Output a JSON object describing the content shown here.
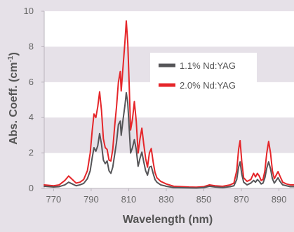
{
  "colors": {
    "page_bg": "#e6e1e8",
    "band_dark": "#e6e1e8",
    "band_light": "#ffffff",
    "axis": "#b9b4bc",
    "tick_text": "#676767",
    "title_text": "#555555",
    "series_1": "#555558",
    "series_2": "#e5262a"
  },
  "chart_data": {
    "type": "line",
    "xlabel": "Wavelength (nm)",
    "ylabel_main": "Abs. Coeff. (cm",
    "ylabel_sup": "-1",
    "ylabel_close": ")",
    "xlim": [
      765,
      898
    ],
    "ylim": [
      0,
      10
    ],
    "xticks": [
      770,
      790,
      810,
      830,
      850,
      870,
      890
    ],
    "yticks": [
      0,
      2,
      4,
      6,
      8,
      10
    ],
    "grid": "alternating horizontal bands",
    "legend_position": "upper-right",
    "series": [
      {
        "name": "1.1% Nd:YAG",
        "color": "#555558",
        "points": [
          [
            765,
            0.12
          ],
          [
            770,
            0.08
          ],
          [
            773,
            0.1
          ],
          [
            776,
            0.2
          ],
          [
            778,
            0.35
          ],
          [
            780,
            0.25
          ],
          [
            782,
            0.15
          ],
          [
            784,
            0.2
          ],
          [
            786,
            0.28
          ],
          [
            788,
            0.55
          ],
          [
            789.5,
            1.0
          ],
          [
            790.5,
            1.7
          ],
          [
            791.5,
            2.3
          ],
          [
            792.5,
            2.1
          ],
          [
            793.5,
            2.4
          ],
          [
            794.5,
            3.1
          ],
          [
            795.5,
            2.5
          ],
          [
            796.5,
            1.6
          ],
          [
            797.5,
            1.4
          ],
          [
            798.5,
            1.55
          ],
          [
            799.5,
            1.0
          ],
          [
            800.5,
            0.85
          ],
          [
            801.5,
            1.2
          ],
          [
            802.5,
            1.9
          ],
          [
            803.5,
            2.6
          ],
          [
            804.5,
            3.6
          ],
          [
            805.5,
            3.8
          ],
          [
            806,
            3.0
          ],
          [
            807,
            3.9
          ],
          [
            808,
            4.7
          ],
          [
            808.7,
            5.4
          ],
          [
            809.5,
            4.8
          ],
          [
            810.2,
            3.5
          ],
          [
            811,
            2.0
          ],
          [
            812,
            2.3
          ],
          [
            813,
            2.75
          ],
          [
            814,
            2.2
          ],
          [
            815,
            1.25
          ],
          [
            816,
            1.7
          ],
          [
            817,
            2.05
          ],
          [
            818,
            1.5
          ],
          [
            819,
            1.0
          ],
          [
            820,
            0.75
          ],
          [
            821,
            1.2
          ],
          [
            822,
            1.25
          ],
          [
            823,
            0.85
          ],
          [
            824,
            0.5
          ],
          [
            825,
            0.35
          ],
          [
            827,
            0.2
          ],
          [
            829,
            0.15
          ],
          [
            830,
            0.12
          ],
          [
            834,
            0.05
          ],
          [
            838,
            0.04
          ],
          [
            842,
            0.03
          ],
          [
            846,
            0.02
          ],
          [
            850,
            0.05
          ],
          [
            853,
            0.12
          ],
          [
            856,
            0.08
          ],
          [
            860,
            0.05
          ],
          [
            864,
            0.1
          ],
          [
            866,
            0.15
          ],
          [
            867.5,
            0.5
          ],
          [
            868.5,
            1.2
          ],
          [
            869.3,
            1.5
          ],
          [
            870.2,
            0.8
          ],
          [
            871.2,
            0.35
          ],
          [
            873,
            0.2
          ],
          [
            875,
            0.3
          ],
          [
            876.5,
            0.45
          ],
          [
            877.5,
            0.35
          ],
          [
            878.5,
            0.5
          ],
          [
            879.5,
            0.4
          ],
          [
            880.5,
            0.25
          ],
          [
            881.5,
            0.3
          ],
          [
            882.5,
            0.6
          ],
          [
            883.5,
            1.15
          ],
          [
            884.5,
            1.5
          ],
          [
            885.5,
            1.1
          ],
          [
            886.5,
            0.55
          ],
          [
            887.5,
            0.3
          ],
          [
            888.5,
            0.45
          ],
          [
            889.5,
            0.6
          ],
          [
            890.5,
            0.4
          ],
          [
            892,
            0.2
          ],
          [
            894,
            0.15
          ],
          [
            896,
            0.1
          ],
          [
            898,
            0.1
          ]
        ]
      },
      {
        "name": "2.0% Nd:YAG",
        "color": "#e5262a",
        "points": [
          [
            765,
            0.2
          ],
          [
            770,
            0.15
          ],
          [
            773,
            0.2
          ],
          [
            776,
            0.45
          ],
          [
            778,
            0.7
          ],
          [
            780,
            0.5
          ],
          [
            782,
            0.3
          ],
          [
            784,
            0.35
          ],
          [
            786,
            0.5
          ],
          [
            788,
            1.0
          ],
          [
            789.5,
            2.0
          ],
          [
            790.5,
            3.2
          ],
          [
            791.5,
            4.2
          ],
          [
            792.5,
            4.0
          ],
          [
            793.5,
            4.6
          ],
          [
            794.5,
            5.45
          ],
          [
            795.5,
            4.4
          ],
          [
            796.5,
            2.8
          ],
          [
            797.5,
            2.3
          ],
          [
            798.5,
            2.2
          ],
          [
            799.5,
            1.6
          ],
          [
            800.5,
            1.55
          ],
          [
            801.5,
            2.2
          ],
          [
            802.5,
            3.5
          ],
          [
            803.5,
            4.6
          ],
          [
            804.5,
            6.0
          ],
          [
            805.5,
            6.6
          ],
          [
            806,
            5.5
          ],
          [
            807,
            6.9
          ],
          [
            808,
            8.3
          ],
          [
            808.7,
            9.45
          ],
          [
            809.5,
            8.2
          ],
          [
            810.2,
            6.0
          ],
          [
            811,
            3.3
          ],
          [
            812,
            3.9
          ],
          [
            813,
            4.9
          ],
          [
            814,
            3.8
          ],
          [
            815,
            2.0
          ],
          [
            816,
            2.8
          ],
          [
            817,
            3.4
          ],
          [
            818,
            2.5
          ],
          [
            819,
            1.7
          ],
          [
            820,
            1.2
          ],
          [
            821,
            2.0
          ],
          [
            822,
            2.25
          ],
          [
            823,
            1.5
          ],
          [
            824,
            0.9
          ],
          [
            825,
            0.6
          ],
          [
            827,
            0.4
          ],
          [
            829,
            0.3
          ],
          [
            830,
            0.25
          ],
          [
            834,
            0.12
          ],
          [
            838,
            0.1
          ],
          [
            842,
            0.08
          ],
          [
            846,
            0.07
          ],
          [
            850,
            0.1
          ],
          [
            853,
            0.2
          ],
          [
            856,
            0.15
          ],
          [
            860,
            0.12
          ],
          [
            864,
            0.2
          ],
          [
            866,
            0.3
          ],
          [
            867.5,
            1.0
          ],
          [
            868.5,
            2.2
          ],
          [
            869.3,
            2.7
          ],
          [
            870.2,
            1.5
          ],
          [
            871.2,
            0.6
          ],
          [
            873,
            0.4
          ],
          [
            875,
            0.5
          ],
          [
            876.5,
            0.85
          ],
          [
            877.5,
            0.65
          ],
          [
            878.5,
            0.85
          ],
          [
            879.5,
            0.7
          ],
          [
            880.5,
            0.45
          ],
          [
            881.5,
            0.5
          ],
          [
            882.5,
            1.0
          ],
          [
            883.5,
            2.0
          ],
          [
            884.5,
            2.65
          ],
          [
            885.5,
            2.0
          ],
          [
            886.5,
            1.0
          ],
          [
            887.5,
            0.55
          ],
          [
            888.5,
            0.75
          ],
          [
            889.5,
            0.95
          ],
          [
            890.5,
            0.7
          ],
          [
            892,
            0.35
          ],
          [
            894,
            0.25
          ],
          [
            896,
            0.2
          ],
          [
            898,
            0.2
          ]
        ]
      }
    ]
  }
}
